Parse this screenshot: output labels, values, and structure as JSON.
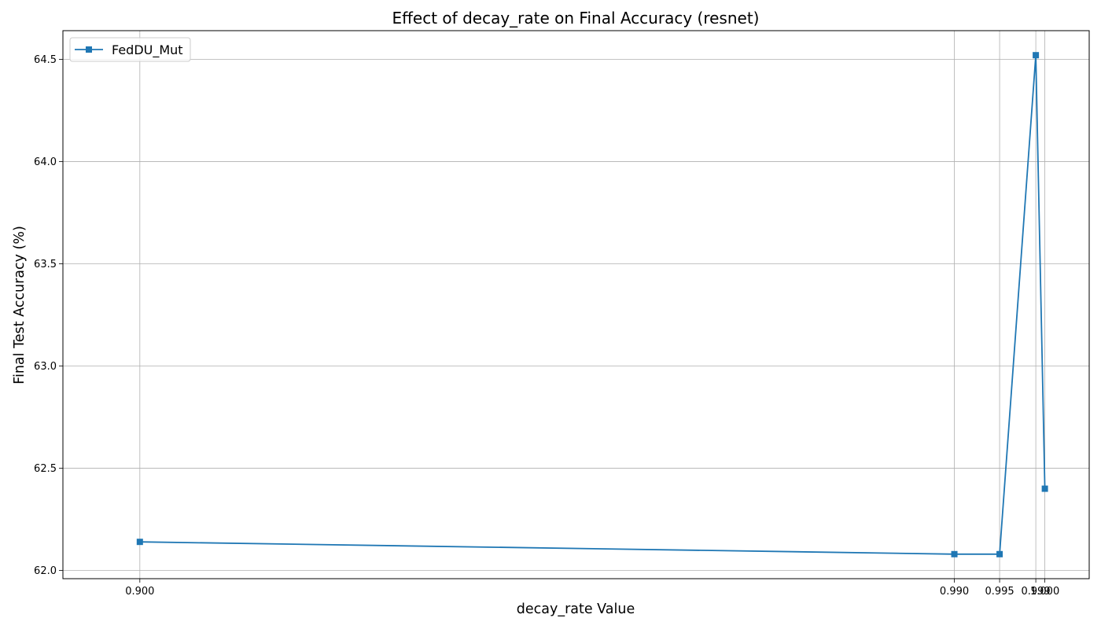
{
  "chart_data": {
    "type": "line",
    "title": "Effect of decay_rate on Final Accuracy (resnet)",
    "xlabel": "decay_rate Value",
    "ylabel": "Final Test Accuracy (%)",
    "xlim": [
      0.8915,
      1.0049
    ],
    "ylim": [
      61.96,
      64.64
    ],
    "xticks": [
      0.9,
      0.99,
      0.995,
      0.999,
      1.0
    ],
    "xtick_labels": [
      "0.900",
      "0.990",
      "0.995",
      "0.999",
      "1.000"
    ],
    "yticks": [
      62.0,
      62.5,
      63.0,
      63.5,
      64.0,
      64.5
    ],
    "ytick_labels": [
      "62.0",
      "62.5",
      "63.0",
      "63.5",
      "64.0",
      "64.5"
    ],
    "grid": true,
    "legend_position": "top-left",
    "series": [
      {
        "name": "FedDU_Mut",
        "color": "#1f77b4",
        "marker": "square",
        "x": [
          0.9,
          0.99,
          0.995,
          0.999,
          1.0
        ],
        "y": [
          62.14,
          62.08,
          62.08,
          64.52,
          62.4
        ]
      }
    ]
  }
}
